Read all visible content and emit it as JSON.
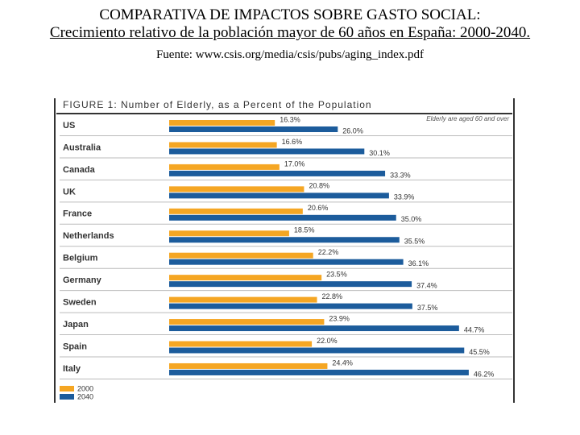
{
  "header": {
    "title": "COMPARATIVA DE IMPACTOS SOBRE GASTO SOCIAL:",
    "subtitle": "Crecimiento relativo de la población mayor de 60 años en España: 2000-2040.",
    "source": "Fuente: www.csis.org/media/csis/pubs/aging_index.pdf"
  },
  "chart_data": {
    "type": "bar",
    "orientation": "horizontal",
    "title": "FIGURE 1: Number of Elderly, as a Percent of the Population",
    "annotation": "Elderly are aged 60 and over",
    "categories": [
      "US",
      "Australia",
      "Canada",
      "UK",
      "France",
      "Netherlands",
      "Belgium",
      "Germany",
      "Sweden",
      "Japan",
      "Spain",
      "Italy"
    ],
    "series": [
      {
        "name": "2000",
        "color": "#f5a623",
        "values": [
          16.3,
          16.6,
          17.0,
          20.8,
          20.6,
          18.5,
          22.2,
          23.5,
          22.8,
          23.9,
          22.0,
          24.4
        ],
        "value_labels": [
          "16.3%",
          "16.6%",
          "17.0%",
          "20.8%",
          "20.6%",
          "18.5%",
          "22.2%",
          "23.5%",
          "22.8%",
          "23.9%",
          "22.0%",
          "24.4%"
        ]
      },
      {
        "name": "2040",
        "color": "#1c5c9c",
        "values": [
          26.0,
          30.1,
          33.3,
          33.9,
          35.0,
          35.5,
          36.1,
          37.4,
          37.5,
          44.7,
          45.5,
          46.2
        ],
        "value_labels": [
          "26.0%",
          "30.1%",
          "33.3%",
          "33.9%",
          "35.0%",
          "35.5%",
          "36.1%",
          "37.4%",
          "37.5%",
          "44.7%",
          "45.5%",
          "46.2%"
        ]
      }
    ]
  }
}
